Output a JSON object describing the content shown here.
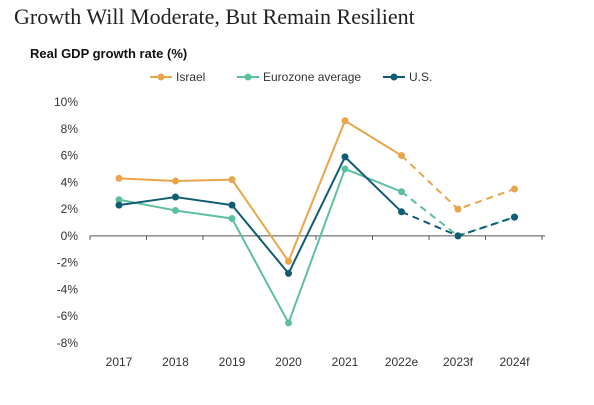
{
  "title": "Growth Will Moderate, But Remain Resilient",
  "chart_data": {
    "type": "line",
    "subtitle": "Real GDP growth rate (%)",
    "categories": [
      "2017",
      "2018",
      "2019",
      "2020",
      "2021",
      "2022e",
      "2023f",
      "2024f"
    ],
    "ylim": [
      -8,
      10
    ],
    "yticks": [
      "10%",
      "8%",
      "6%",
      "4%",
      "2%",
      "0%",
      "-2%",
      "-4%",
      "-6%",
      "-8%"
    ],
    "ytick_values": [
      10,
      8,
      6,
      4,
      2,
      0,
      -2,
      -4,
      -6,
      -8
    ],
    "grid": false,
    "legend_position": "top",
    "forecast_dashed_from": "2022e",
    "series": [
      {
        "name": "Israel",
        "color": "#E9A54A",
        "values": [
          4.3,
          4.1,
          4.2,
          -1.9,
          8.6,
          6.0,
          2.0,
          3.5
        ]
      },
      {
        "name": "Eurozone average",
        "color": "#5DBFA0",
        "values": [
          2.7,
          1.9,
          1.3,
          -6.5,
          5.0,
          3.3,
          0.0,
          1.4
        ]
      },
      {
        "name": "U.S.",
        "color": "#0F5C73",
        "values": [
          2.3,
          2.9,
          2.3,
          -2.8,
          5.9,
          1.8,
          0.0,
          1.4
        ]
      }
    ]
  }
}
